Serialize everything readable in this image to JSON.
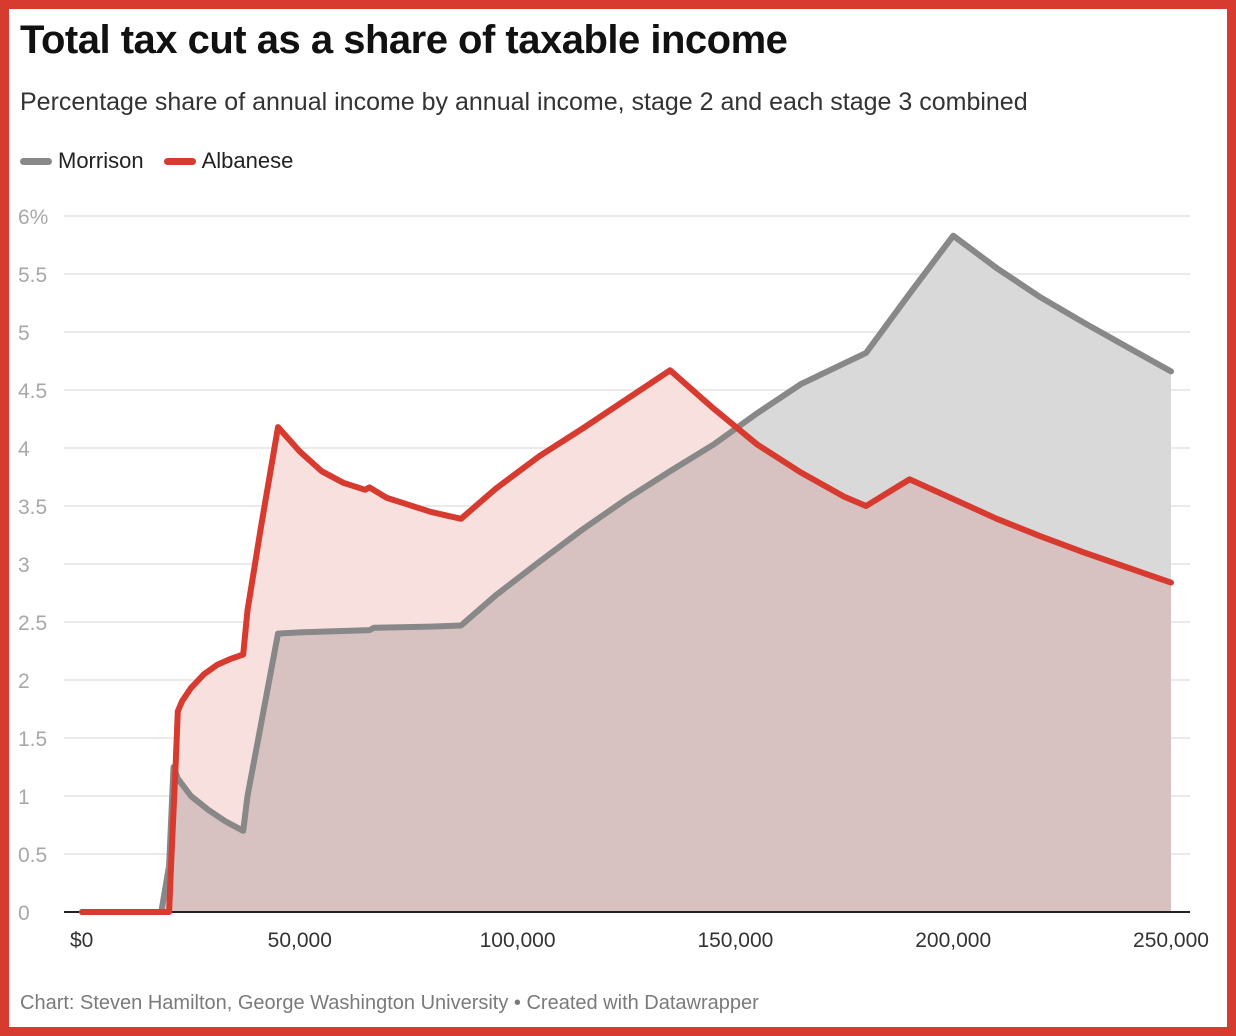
{
  "title": "Total tax cut as a share of taxable income",
  "subtitle": "Percentage share of annual income by annual income, stage 2 and each stage 3 combined",
  "footer": "Chart: Steven Hamilton, George Washington University • Created with Datawrapper",
  "colors": {
    "frame": "#d73a2f",
    "morrison": "#888888",
    "albanese": "#d73a2f",
    "morrison_fill": "#d9d9d9",
    "albanese_fill": "#f8e0df",
    "overlap_fill": "#d8c1c1",
    "grid": "#e3e3e3",
    "y_tick": "#a8a8a8",
    "x_tick": "#333333"
  },
  "legend": [
    {
      "name": "Morrison",
      "color": "#888888"
    },
    {
      "name": "Albanese",
      "color": "#d73a2f"
    }
  ],
  "chart_data": {
    "type": "area",
    "title": "Total tax cut as a share of taxable income",
    "subtitle": "Percentage share of annual income by annual income, stage 2 and each stage 3 combined",
    "xlabel": "",
    "ylabel": "",
    "xlim": [
      0,
      250000
    ],
    "ylim": [
      0,
      6
    ],
    "y_ticks": [
      0,
      0.5,
      1,
      1.5,
      2,
      2.5,
      3,
      3.5,
      4,
      4.5,
      5,
      5.5,
      6
    ],
    "y_tick_labels": [
      "0",
      "0.5",
      "1",
      "1.5",
      "2",
      "2.5",
      "3",
      "3.5",
      "4",
      "4.5",
      "5",
      "5.5",
      "6%"
    ],
    "x_ticks": [
      0,
      50000,
      100000,
      150000,
      200000,
      250000
    ],
    "x_tick_labels": [
      "$0",
      "50,000",
      "100,000",
      "150,000",
      "200,000",
      "250,000"
    ],
    "grid": true,
    "legend_position": "top-left",
    "series": [
      {
        "name": "Morrison",
        "points": [
          [
            0,
            0
          ],
          [
            18200,
            0
          ],
          [
            20000,
            0.4
          ],
          [
            21000,
            1.25
          ],
          [
            22000,
            1.15
          ],
          [
            25000,
            1.0
          ],
          [
            29000,
            0.88
          ],
          [
            33000,
            0.78
          ],
          [
            37000,
            0.7
          ],
          [
            38000,
            1.0
          ],
          [
            41000,
            1.6
          ],
          [
            45000,
            2.4
          ],
          [
            50000,
            2.41
          ],
          [
            66000,
            2.43
          ],
          [
            67000,
            2.45
          ],
          [
            80000,
            2.46
          ],
          [
            87000,
            2.47
          ],
          [
            95000,
            2.73
          ],
          [
            105000,
            3.02
          ],
          [
            115000,
            3.3
          ],
          [
            125000,
            3.56
          ],
          [
            135000,
            3.8
          ],
          [
            145000,
            4.03
          ],
          [
            155000,
            4.3
          ],
          [
            165000,
            4.55
          ],
          [
            175000,
            4.73
          ],
          [
            180000,
            4.82
          ],
          [
            190000,
            5.33
          ],
          [
            200000,
            5.83
          ],
          [
            210000,
            5.55
          ],
          [
            220000,
            5.3
          ],
          [
            230000,
            5.08
          ],
          [
            240000,
            4.87
          ],
          [
            250000,
            4.66
          ]
        ]
      },
      {
        "name": "Albanese",
        "points": [
          [
            0,
            0
          ],
          [
            20000,
            0
          ],
          [
            20500,
            0.45
          ],
          [
            21500,
            1.28
          ],
          [
            22000,
            1.73
          ],
          [
            23000,
            1.82
          ],
          [
            25000,
            1.93
          ],
          [
            28000,
            2.05
          ],
          [
            31000,
            2.13
          ],
          [
            34000,
            2.18
          ],
          [
            37000,
            2.22
          ],
          [
            38000,
            2.6
          ],
          [
            41000,
            3.3
          ],
          [
            45000,
            4.18
          ],
          [
            50000,
            3.97
          ],
          [
            55000,
            3.8
          ],
          [
            60000,
            3.7
          ],
          [
            65000,
            3.64
          ],
          [
            66000,
            3.66
          ],
          [
            70000,
            3.57
          ],
          [
            75000,
            3.51
          ],
          [
            80000,
            3.45
          ],
          [
            87000,
            3.39
          ],
          [
            95000,
            3.65
          ],
          [
            105000,
            3.93
          ],
          [
            115000,
            4.17
          ],
          [
            125000,
            4.42
          ],
          [
            135000,
            4.67
          ],
          [
            145000,
            4.34
          ],
          [
            155000,
            4.03
          ],
          [
            165000,
            3.79
          ],
          [
            175000,
            3.58
          ],
          [
            180000,
            3.5
          ],
          [
            190000,
            3.73
          ],
          [
            200000,
            3.56
          ],
          [
            210000,
            3.39
          ],
          [
            220000,
            3.24
          ],
          [
            230000,
            3.1
          ],
          [
            240000,
            2.97
          ],
          [
            250000,
            2.84
          ]
        ]
      }
    ]
  }
}
